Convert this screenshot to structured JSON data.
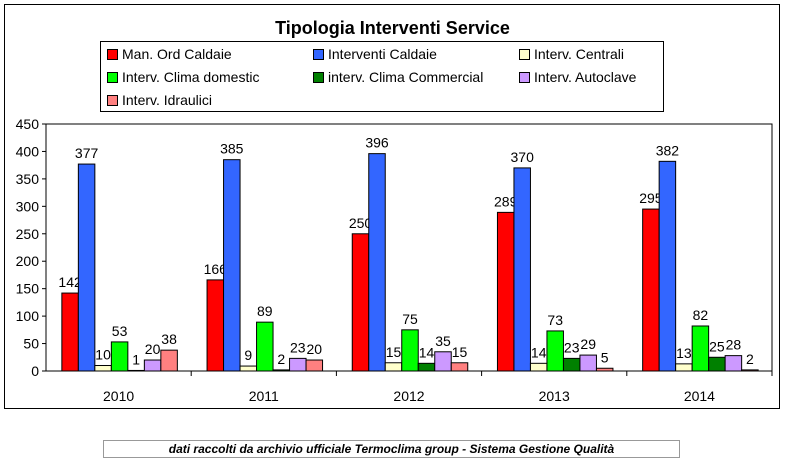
{
  "chart_data": {
    "type": "bar",
    "title": "Tipologia Interventi Service",
    "categories": [
      "2010",
      "2011",
      "2012",
      "2013",
      "2014"
    ],
    "ylim": [
      0,
      450
    ],
    "yticks": [
      0,
      50,
      100,
      150,
      200,
      250,
      300,
      350,
      400,
      450
    ],
    "legend_position": "top",
    "series": [
      {
        "name": "Man. Ord Caldaie",
        "color": "#ff0000",
        "values": [
          142,
          166,
          250,
          289,
          295
        ]
      },
      {
        "name": "Interventi Caldaie",
        "color": "#3366ff",
        "values": [
          377,
          385,
          396,
          370,
          382
        ]
      },
      {
        "name": "Interv. Centrali",
        "color": "#ffffcc",
        "values": [
          10,
          9,
          15,
          14,
          13
        ]
      },
      {
        "name": "Interv. Clima domestic",
        "color": "#00ff00",
        "values": [
          53,
          89,
          75,
          73,
          82
        ]
      },
      {
        "name": "interv. Clima Commercial",
        "color": "#008000",
        "values": [
          1,
          2,
          14,
          23,
          25
        ]
      },
      {
        "name": "Interv. Autoclave",
        "color": "#cc99ff",
        "values": [
          20,
          23,
          35,
          29,
          28
        ]
      },
      {
        "name": "Interv. Idraulici",
        "color": "#ff8080",
        "values": [
          38,
          20,
          15,
          5,
          2
        ]
      }
    ]
  },
  "footer": "dati raccolti da archivio ufficiale Termoclima group - Sistema Gestione Qualità"
}
